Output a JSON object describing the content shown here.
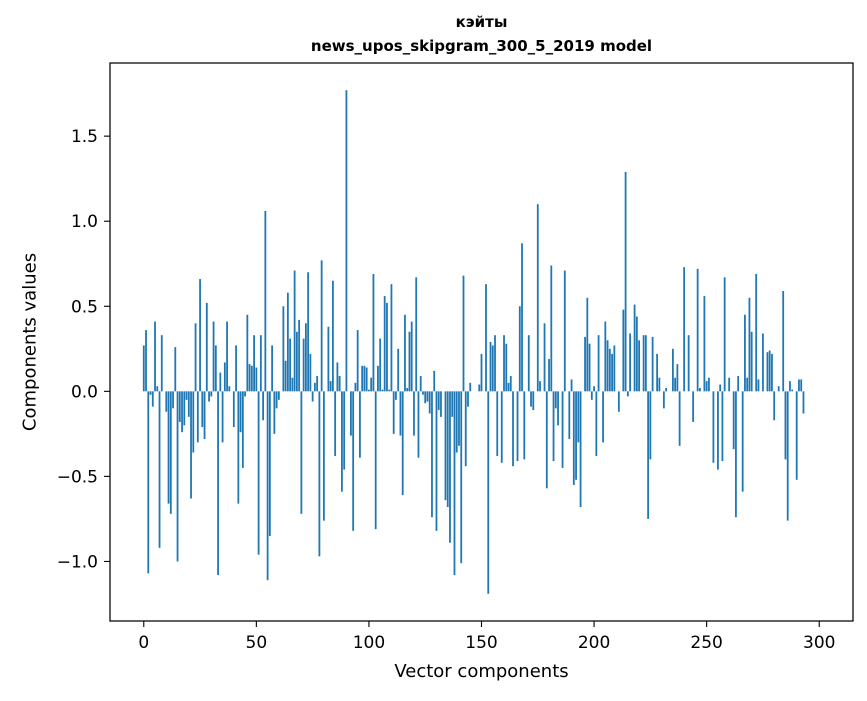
{
  "chart_data": {
    "type": "bar",
    "title_line1": "кэйты",
    "title_line2": "news_upos_skipgram_300_5_2019 model",
    "xlabel": "Vector components",
    "ylabel": "Components values",
    "xlim": [
      -15,
      315
    ],
    "ylim": [
      -1.35,
      1.93
    ],
    "xticks": [
      0,
      50,
      100,
      150,
      200,
      250,
      300
    ],
    "xtick_labels": [
      "0",
      "50",
      "100",
      "150",
      "200",
      "250",
      "300"
    ],
    "yticks": [
      -1.0,
      -0.5,
      0.0,
      0.5,
      1.0,
      1.5
    ],
    "ytick_labels": [
      "−1.0",
      "−0.5",
      "0.0",
      "0.5",
      "1.0",
      "1.5"
    ],
    "bar_color": "#1f77b4",
    "grid": false,
    "legend": "none",
    "x_start": 0,
    "values": [
      0.27,
      0.36,
      -1.07,
      -0.02,
      -0.09,
      0.41,
      0.03,
      -0.92,
      0.33,
      0.0,
      -0.12,
      -0.66,
      -0.72,
      -0.1,
      0.26,
      -1.0,
      -0.18,
      -0.24,
      -0.2,
      -0.05,
      -0.15,
      -0.63,
      -0.36,
      0.4,
      -0.3,
      0.66,
      -0.21,
      -0.28,
      0.52,
      -0.06,
      -0.03,
      0.41,
      0.27,
      -1.08,
      0.11,
      -0.3,
      0.17,
      0.41,
      0.03,
      0.0,
      -0.21,
      0.27,
      -0.66,
      -0.24,
      -0.45,
      -0.03,
      0.45,
      0.16,
      0.15,
      0.33,
      0.14,
      -0.96,
      0.33,
      -0.17,
      1.06,
      -1.11,
      -0.85,
      0.27,
      -0.25,
      -0.1,
      -0.05,
      0.0,
      0.5,
      0.18,
      0.58,
      0.31,
      0.08,
      0.71,
      0.35,
      0.42,
      -0.72,
      0.31,
      0.4,
      0.7,
      0.22,
      -0.06,
      0.05,
      0.09,
      -0.97,
      0.77,
      -0.76,
      0.0,
      0.38,
      0.06,
      0.65,
      -0.38,
      0.17,
      0.09,
      -0.59,
      -0.46,
      1.77,
      0.0,
      -0.26,
      -0.82,
      0.05,
      0.36,
      -0.39,
      0.15,
      0.15,
      0.14,
      0.01,
      0.08,
      0.69,
      -0.81,
      0.15,
      0.31,
      0.01,
      0.56,
      0.52,
      0.01,
      0.63,
      -0.25,
      -0.05,
      0.25,
      -0.26,
      -0.61,
      0.45,
      0.02,
      0.35,
      0.41,
      -0.26,
      0.67,
      -0.39,
      0.09,
      -0.02,
      -0.07,
      -0.06,
      -0.13,
      -0.74,
      0.12,
      -0.82,
      -0.11,
      -0.15,
      0.0,
      -0.64,
      -0.68,
      -0.89,
      -0.15,
      -1.08,
      -0.36,
      -0.32,
      -1.01,
      0.68,
      -0.44,
      -0.09,
      0.05,
      0.0,
      0.0,
      0.0,
      0.04,
      0.22,
      0.0,
      0.63,
      -1.19,
      0.29,
      0.27,
      0.33,
      -0.38,
      0.0,
      -0.42,
      0.33,
      0.28,
      0.05,
      0.09,
      -0.44,
      0.0,
      -0.41,
      0.5,
      0.87,
      -0.4,
      0.0,
      0.33,
      -0.09,
      -0.11,
      0.0,
      1.1,
      0.06,
      0.0,
      0.4,
      -0.57,
      0.19,
      0.74,
      -0.41,
      -0.1,
      -0.2,
      0.0,
      -0.45,
      0.71,
      0.0,
      -0.28,
      0.07,
      -0.55,
      -0.52,
      -0.3,
      -0.68,
      0.0,
      0.32,
      0.55,
      0.28,
      -0.05,
      0.03,
      -0.38,
      0.33,
      0.0,
      -0.3,
      0.41,
      0.3,
      0.25,
      0.22,
      0.27,
      0.0,
      -0.12,
      0.0,
      0.48,
      1.29,
      -0.03,
      0.34,
      0.0,
      0.51,
      0.44,
      0.3,
      0.0,
      0.33,
      0.33,
      -0.75,
      -0.4,
      0.32,
      0.0,
      0.22,
      0.08,
      0.0,
      -0.1,
      0.02,
      0.0,
      0.0,
      0.25,
      0.08,
      0.16,
      -0.32,
      0.0,
      0.73,
      0.0,
      0.33,
      0.0,
      -0.18,
      0.0,
      0.72,
      0.02,
      0.0,
      0.56,
      0.06,
      0.08,
      0.0,
      -0.42,
      0.0,
      -0.46,
      0.04,
      -0.41,
      0.67,
      0.0,
      0.08,
      0.0,
      -0.34,
      -0.74,
      0.09,
      0.0,
      -0.59,
      0.45,
      0.08,
      0.55,
      0.35,
      0.0,
      0.69,
      0.07,
      0.0,
      0.34,
      0.0,
      0.23,
      0.24,
      0.22,
      -0.17,
      0.0,
      0.03,
      0.0,
      0.59,
      -0.4,
      -0.76,
      0.06,
      0.01,
      0.0,
      -0.52,
      0.07,
      0.07,
      -0.13,
      0.0
    ]
  }
}
